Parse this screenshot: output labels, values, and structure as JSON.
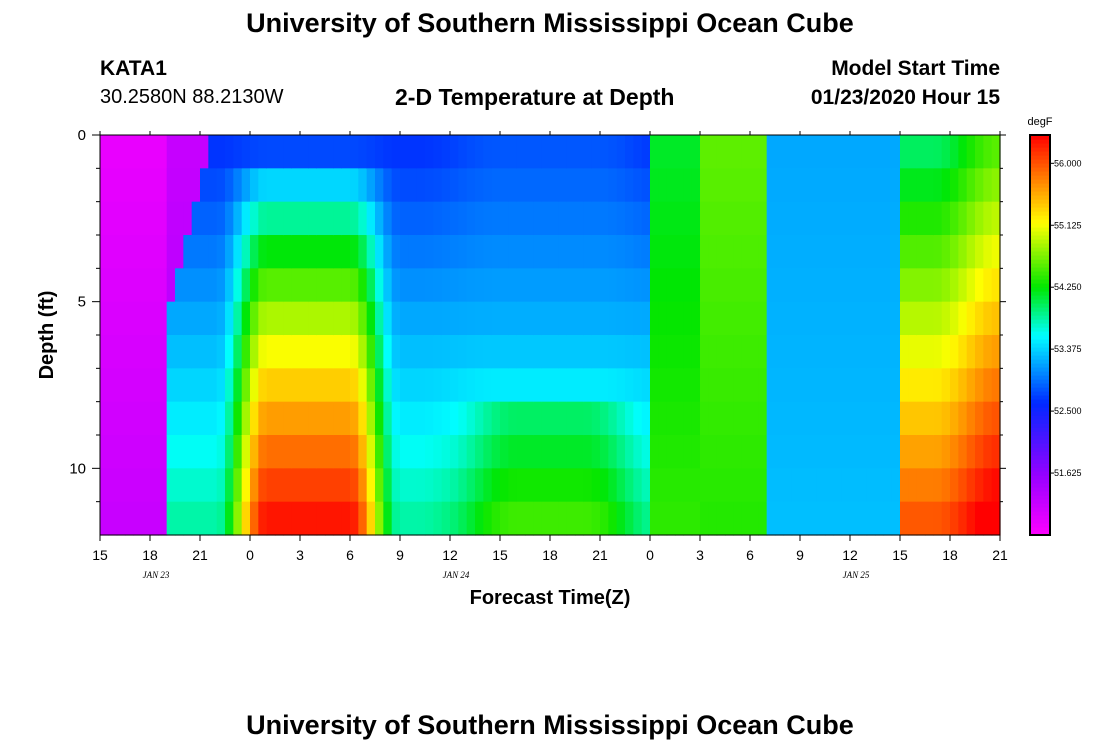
{
  "page": {
    "title_top": "University of Southern Mississippi Ocean Cube",
    "title_bottom": "University of Southern Mississippi Ocean Cube",
    "station": "KATA1",
    "location": "30.2580N 88.2130W",
    "plot_title": "2-D Temperature at Depth",
    "model_start_label": "Model Start Time",
    "model_start_value": "01/23/2020 Hour 15"
  },
  "chart_data": {
    "type": "heatmap",
    "title": "2-D Temperature at Depth",
    "xlabel": "Forecast Time(Z)",
    "ylabel": "Depth (ft)",
    "x_start_hour": 15,
    "x_tick_step_hours": 3,
    "x_tick_labels": [
      "15",
      "18",
      "21",
      "0",
      "3",
      "6",
      "9",
      "12",
      "15",
      "18",
      "21",
      "0",
      "3",
      "6",
      "9",
      "12",
      "15",
      "18",
      "21"
    ],
    "date_labels": [
      {
        "label": "JAN 23",
        "after_tick": 1
      },
      {
        "label": "JAN 24",
        "after_tick": 7
      },
      {
        "label": "JAN 25",
        "after_tick": 15
      }
    ],
    "xlim_hours": [
      0,
      54
    ],
    "ylim": [
      0,
      12
    ],
    "y_inverted": true,
    "y_tick_labels": [
      "0",
      "5",
      "10"
    ],
    "y_major": [
      0,
      5,
      10
    ],
    "y_minor": [
      1,
      2,
      3,
      4,
      6,
      7,
      8,
      9,
      11
    ],
    "colorbar": {
      "unit": "degF",
      "min": 50.75,
      "max": 56.4,
      "tick_labels": [
        "51.625",
        "52.500",
        "53.375",
        "54.250",
        "55.125",
        "56.000"
      ],
      "ticks": [
        51.625,
        52.5,
        53.375,
        54.25,
        55.125,
        56.0
      ],
      "colormap": "rainbow (magenta-blue-cyan-green-yellow-orange-red)"
    },
    "depth_levels_ft": [
      0.5,
      1.5,
      2.5,
      3.5,
      4.5,
      5.5,
      6.5,
      7.5,
      8.5,
      9.5,
      10.5,
      11.5
    ],
    "grid": false
  }
}
